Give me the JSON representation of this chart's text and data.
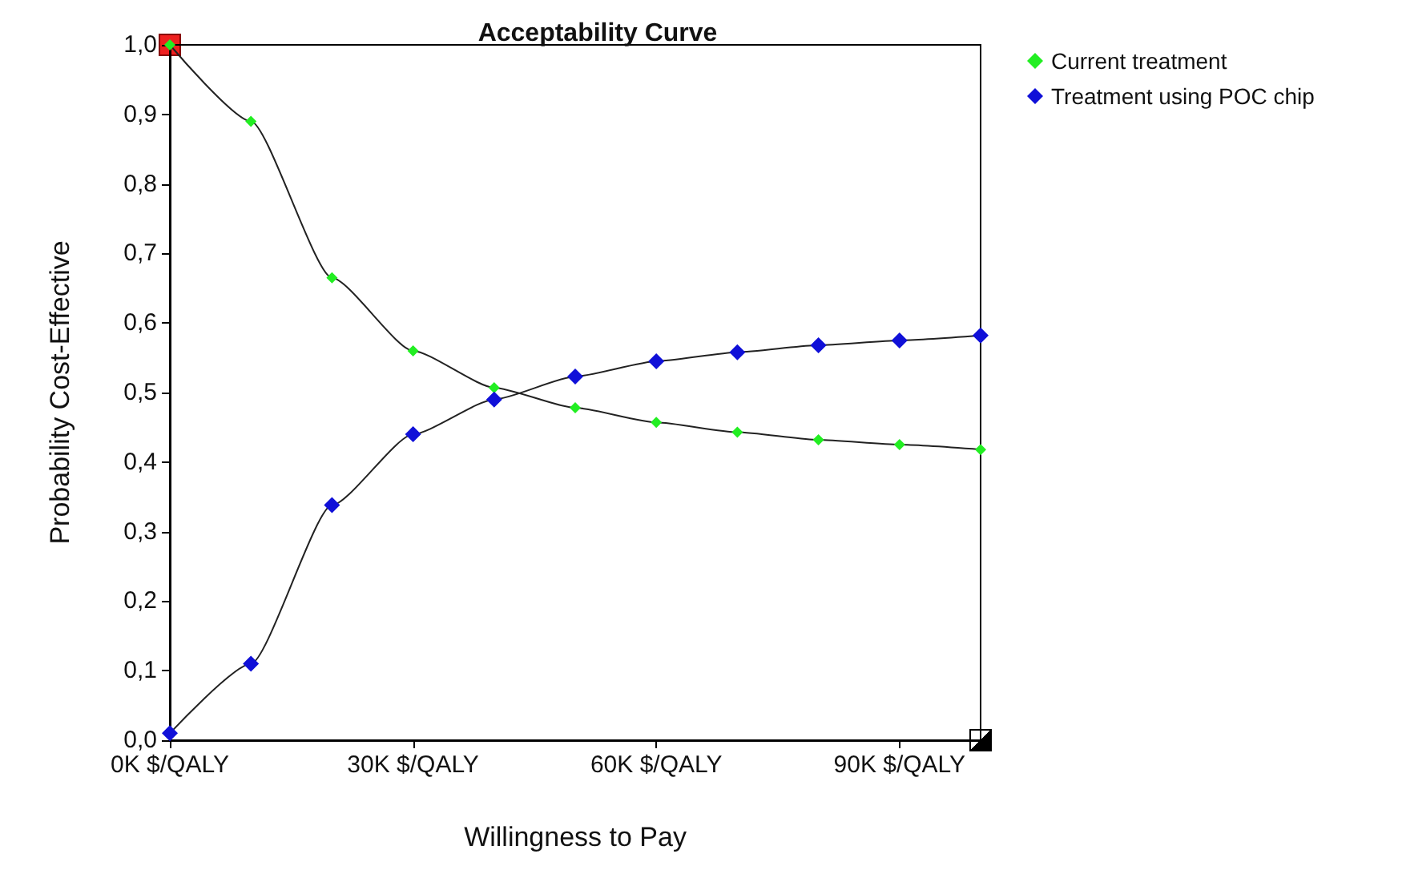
{
  "chart_data": {
    "type": "line",
    "title": "Acceptability Curve",
    "xlabel": "Willingness to Pay",
    "ylabel": "Probability Cost-Effective",
    "x": [
      0,
      10,
      20,
      30,
      40,
      50,
      60,
      70,
      80,
      90,
      100
    ],
    "series": [
      {
        "name": "Current treatment",
        "color": "#22ee22",
        "values": [
          1.0,
          0.89,
          0.665,
          0.56,
          0.507,
          0.478,
          0.457,
          0.443,
          0.432,
          0.425,
          0.418
        ]
      },
      {
        "name": "Treatment using POC chip",
        "color": "#1010d8",
        "values": [
          0.01,
          0.11,
          0.338,
          0.44,
          0.49,
          0.523,
          0.545,
          0.558,
          0.568,
          0.575,
          0.582
        ]
      }
    ],
    "xlim": [
      0,
      100
    ],
    "xticks": [
      {
        "value": 0,
        "label": "0K $/QALY"
      },
      {
        "value": 30,
        "label": "30K $/QALY"
      },
      {
        "value": 60,
        "label": "60K $/QALY"
      },
      {
        "value": 90,
        "label": "90K $/QALY"
      }
    ],
    "ylim": [
      0,
      1
    ],
    "yticks": [
      {
        "value": 0,
        "label": "0,0"
      },
      {
        "value": 0.1,
        "label": "0,1"
      },
      {
        "value": 0.2,
        "label": "0,2"
      },
      {
        "value": 0.3,
        "label": "0,3"
      },
      {
        "value": 0.4,
        "label": "0,4"
      },
      {
        "value": 0.5,
        "label": "0,5"
      },
      {
        "value": 0.6,
        "label": "0,6"
      },
      {
        "value": 0.7,
        "label": "0,7"
      },
      {
        "value": 0.8,
        "label": "0,8"
      },
      {
        "value": 0.9,
        "label": "0,9"
      },
      {
        "value": 1,
        "label": "1,0"
      }
    ],
    "grid": false,
    "legend": "top right",
    "marker": "diamond",
    "line_style": "solid"
  }
}
